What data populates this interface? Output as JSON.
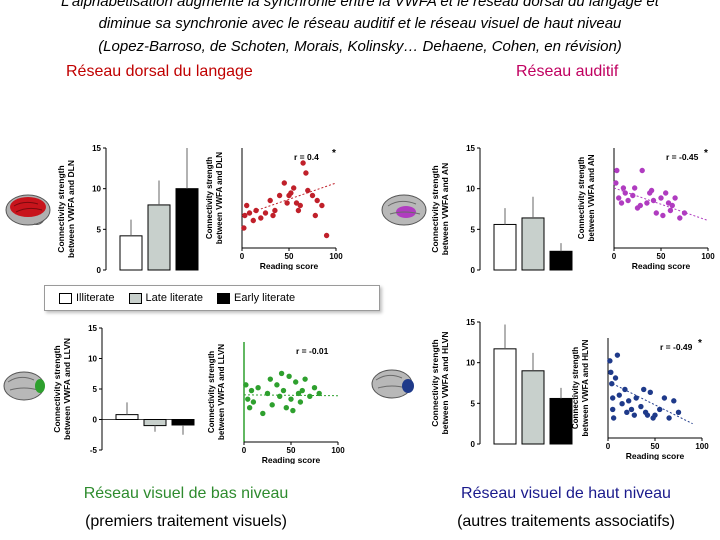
{
  "header": {
    "lines": [
      "L’alphabétisation augmente la synchronie entre la VWFA et le réseau dorsal du langage et",
      "diminue sa synchronie avec le réseau auditif et le réseau visuel de haut niveau",
      "(Lopez-Barroso, de Schoten, Morais, Kolinsky… Dehaene, Cohen, en révision)"
    ]
  },
  "sections": {
    "dorsal": "Réseau dorsal du langage",
    "auditory": "Réseau auditif",
    "low_visual": [
      "Réseau visuel de bas niveau",
      "(premiers traitement visuels)"
    ],
    "high_visual": [
      "Réseau visuel de haut niveau",
      "(autres traitements associatifs)"
    ]
  },
  "legend": {
    "illiterate": "Illiterate",
    "late": "Late literate",
    "early": "Early literate"
  },
  "colors": {
    "illiterate": "#ffffff",
    "late": "#c8d0cc",
    "early": "#000000",
    "dln": "#c0202a",
    "an": "#b03cc0",
    "llvn": "#2ea02e",
    "hlvn": "#1f3a8a"
  },
  "panels": [
    {
      "id": "dln",
      "bar_ylabel": "Connectivity strength between VWFA and DLN",
      "scatter_ylabel": "Connectivity strength between VWFA and DLN",
      "r": "r = 0.4",
      "star": "*",
      "xlabel": "Reading score",
      "ytick_labels": [
        "15",
        "10",
        "5",
        "0"
      ],
      "xtick_labels": [
        "0",
        "50",
        "100"
      ]
    },
    {
      "id": "an",
      "bar_ylabel": "Connectivity strength between VWFA and AN",
      "scatter_ylabel": "Connectivity strength between VWFA and AN",
      "r": "r = -0.45",
      "star": "*",
      "xlabel": "Reading score",
      "ytick_labels": [
        "15",
        "10",
        "5",
        "0"
      ],
      "xtick_labels": [
        "0",
        "50",
        "100"
      ]
    },
    {
      "id": "llvn",
      "bar_ylabel": "Connectivity strength between VWFA and LLVN",
      "scatter_ylabel": "Connectivity strength between VWFA and LLVN",
      "r": "r = -0.01",
      "star": "",
      "xlabel": "Reading score",
      "ytick_labels": [
        "15",
        "10",
        "5",
        "0",
        "-5"
      ],
      "xtick_labels": [
        "0",
        "50",
        "100"
      ]
    },
    {
      "id": "hlvn",
      "bar_ylabel": "Connectivity strength between VWFA and HLVN",
      "scatter_ylabel": "Connectivity strength between VWFA and HLVN",
      "r": "r = -0.49",
      "star": "*",
      "xlabel": "Reading score",
      "ytick_labels": [
        "15",
        "10",
        "5",
        "0"
      ],
      "xtick_labels": [
        "0",
        "50",
        "100"
      ]
    }
  ],
  "chart_data": [
    {
      "type": "bar",
      "panel": "dln",
      "categories": [
        "Illiterate",
        "Late literate",
        "Early literate"
      ],
      "values": [
        4.2,
        8.0,
        10.0
      ],
      "errors": [
        2.0,
        3.0,
        5.0
      ],
      "ylim": [
        0,
        15
      ]
    },
    {
      "type": "scatter",
      "panel": "dln",
      "xlim": [
        0,
        100
      ],
      "ylim": [
        -10,
        30
      ],
      "r": 0.4,
      "points": [
        [
          2,
          -2
        ],
        [
          3,
          3
        ],
        [
          5,
          7
        ],
        [
          8,
          4
        ],
        [
          12,
          1
        ],
        [
          15,
          5
        ],
        [
          20,
          2
        ],
        [
          25,
          4
        ],
        [
          30,
          9
        ],
        [
          33,
          3
        ],
        [
          35,
          5
        ],
        [
          40,
          11
        ],
        [
          45,
          16
        ],
        [
          48,
          8
        ],
        [
          50,
          11
        ],
        [
          52,
          12
        ],
        [
          55,
          14
        ],
        [
          58,
          8
        ],
        [
          60,
          5
        ],
        [
          62,
          7
        ],
        [
          65,
          24
        ],
        [
          68,
          20
        ],
        [
          70,
          13
        ],
        [
          75,
          11
        ],
        [
          78,
          3
        ],
        [
          80,
          9
        ],
        [
          85,
          7
        ],
        [
          90,
          -5
        ]
      ],
      "fit": [
        [
          0,
          3
        ],
        [
          100,
          16
        ]
      ]
    },
    {
      "type": "bar",
      "panel": "an",
      "categories": [
        "Illiterate",
        "Late literate",
        "Early literate"
      ],
      "values": [
        5.6,
        6.4,
        2.3
      ],
      "errors": [
        2.0,
        2.6,
        1.0
      ],
      "ylim": [
        0,
        15
      ]
    },
    {
      "type": "scatter",
      "panel": "an",
      "xlim": [
        0,
        100
      ],
      "ylim": [
        -10,
        30
      ],
      "r": -0.45,
      "points": [
        [
          2,
          16
        ],
        [
          3,
          21
        ],
        [
          5,
          10
        ],
        [
          8,
          8
        ],
        [
          10,
          14
        ],
        [
          12,
          12
        ],
        [
          15,
          9
        ],
        [
          20,
          11
        ],
        [
          22,
          14
        ],
        [
          25,
          6
        ],
        [
          28,
          7
        ],
        [
          30,
          21
        ],
        [
          35,
          8
        ],
        [
          38,
          12
        ],
        [
          40,
          13
        ],
        [
          42,
          9
        ],
        [
          45,
          4
        ],
        [
          50,
          10
        ],
        [
          52,
          3
        ],
        [
          55,
          12
        ],
        [
          58,
          8
        ],
        [
          60,
          5
        ],
        [
          62,
          7
        ],
        [
          65,
          10
        ],
        [
          70,
          2
        ],
        [
          75,
          4
        ]
      ],
      "fit": [
        [
          0,
          14
        ],
        [
          100,
          1
        ]
      ]
    },
    {
      "type": "bar",
      "panel": "llvn",
      "categories": [
        "Illiterate",
        "Late literate",
        "Early literate"
      ],
      "values": [
        0.8,
        -1.0,
        -0.9
      ],
      "errors": [
        2.0,
        1.0,
        1.6
      ],
      "ylim": [
        -5,
        15
      ]
    },
    {
      "type": "scatter",
      "panel": "llvn",
      "xlim": [
        0,
        100
      ],
      "ylim": [
        -15,
        20
      ],
      "r": -0.01,
      "points": [
        [
          2,
          5
        ],
        [
          4,
          0
        ],
        [
          6,
          -3
        ],
        [
          8,
          3
        ],
        [
          10,
          -1
        ],
        [
          15,
          4
        ],
        [
          20,
          -5
        ],
        [
          25,
          2
        ],
        [
          28,
          7
        ],
        [
          30,
          -2
        ],
        [
          35,
          5
        ],
        [
          38,
          1
        ],
        [
          40,
          9
        ],
        [
          42,
          3
        ],
        [
          45,
          -3
        ],
        [
          48,
          8
        ],
        [
          50,
          0
        ],
        [
          52,
          -4
        ],
        [
          55,
          6
        ],
        [
          58,
          2
        ],
        [
          60,
          -1
        ],
        [
          62,
          3
        ],
        [
          65,
          7
        ],
        [
          70,
          1
        ],
        [
          75,
          4
        ],
        [
          80,
          2
        ]
      ],
      "fit": [
        [
          0,
          1.5
        ],
        [
          100,
          1.2
        ]
      ]
    },
    {
      "type": "bar",
      "panel": "hlvn",
      "categories": [
        "Illiterate",
        "Late literate",
        "Early literate"
      ],
      "values": [
        11.7,
        9.0,
        5.6
      ],
      "errors": [
        3.0,
        2.2,
        1.3
      ],
      "ylim": [
        0,
        15
      ]
    },
    {
      "type": "scatter",
      "panel": "hlvn",
      "xlim": [
        0,
        100
      ],
      "ylim": [
        -5,
        30
      ],
      "r": -0.49,
      "points": [
        [
          2,
          22
        ],
        [
          3,
          18
        ],
        [
          4,
          14
        ],
        [
          5,
          9
        ],
        [
          5,
          5
        ],
        [
          6,
          2
        ],
        [
          8,
          16
        ],
        [
          10,
          24
        ],
        [
          12,
          10
        ],
        [
          15,
          7
        ],
        [
          18,
          12
        ],
        [
          20,
          4
        ],
        [
          22,
          8
        ],
        [
          25,
          5
        ],
        [
          28,
          3
        ],
        [
          30,
          9
        ],
        [
          35,
          6
        ],
        [
          38,
          12
        ],
        [
          40,
          4
        ],
        [
          42,
          3
        ],
        [
          45,
          11
        ],
        [
          48,
          2
        ],
        [
          50,
          3
        ],
        [
          55,
          5
        ],
        [
          60,
          9
        ],
        [
          65,
          2
        ],
        [
          70,
          8
        ],
        [
          75,
          4
        ]
      ],
      "fit": [
        [
          5,
          14
        ],
        [
          90,
          0
        ]
      ]
    }
  ]
}
